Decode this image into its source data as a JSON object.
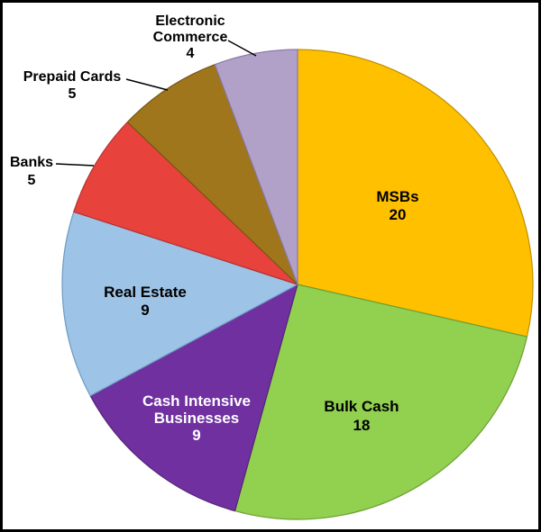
{
  "chart_data": {
    "type": "pie",
    "title": "",
    "legend": "none",
    "start_angle_deg": 0,
    "direction": "clockwise",
    "total": 70,
    "slices": [
      {
        "label": "MSBs",
        "value": 20,
        "color": "#FFC000",
        "border": "#BF9000",
        "label_color": "#000000",
        "label_placement": "inside"
      },
      {
        "label": "Bulk Cash",
        "value": 18,
        "color": "#92D050",
        "border": "#6DA033",
        "label_color": "#000000",
        "label_placement": "inside"
      },
      {
        "label": "Cash Intensive Businesses",
        "value": 9,
        "color": "#7030A0",
        "border": "#542478",
        "label_color": "#FFFFFF",
        "label_placement": "inside"
      },
      {
        "label": "Real Estate",
        "value": 9,
        "color": "#9DC3E6",
        "border": "#6D9BC4",
        "label_color": "#000000",
        "label_placement": "inside"
      },
      {
        "label": "Banks",
        "value": 5,
        "color": "#E8423D",
        "border": "#B53230",
        "label_color": "#000000",
        "label_placement": "outside"
      },
      {
        "label": "Prepaid Cards",
        "value": 5,
        "color": "#A0761C",
        "border": "#755614",
        "label_color": "#000000",
        "label_placement": "outside"
      },
      {
        "label": "Electronic Commerce",
        "value": 4,
        "color": "#B1A0C7",
        "border": "#8A7AA8",
        "label_color": "#000000",
        "label_placement": "outside"
      }
    ],
    "leader_line_color": "#000000",
    "background_color": "#FFFFFF",
    "frame_border_color": "#000000"
  }
}
